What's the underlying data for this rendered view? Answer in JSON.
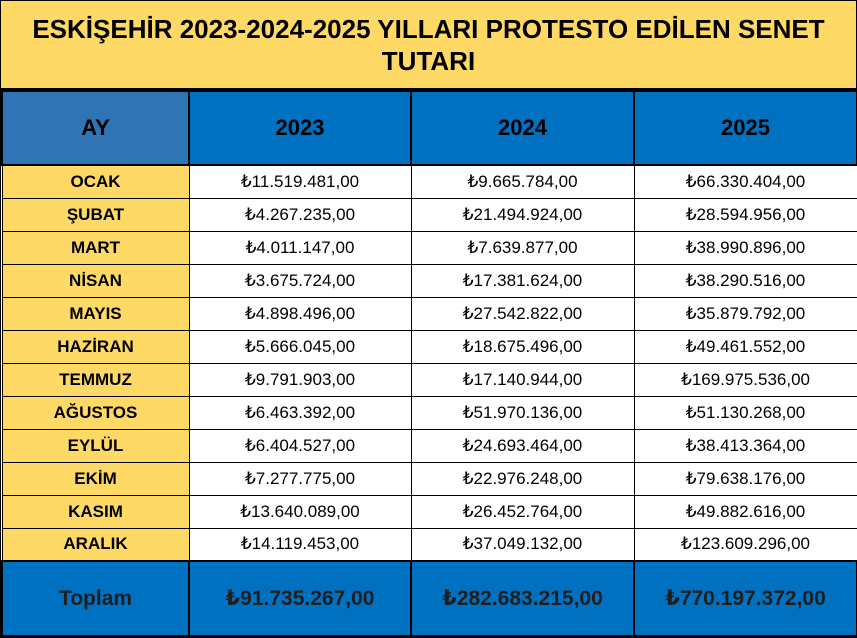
{
  "title": "ESKİŞEHİR 2023-2024-2025 YILLARI PROTESTO EDİLEN SENET TUTARI",
  "header": {
    "month_col": "AY",
    "years": [
      "2023",
      "2024",
      "2025"
    ]
  },
  "rows": [
    {
      "month": "OCAK",
      "values": [
        "₺11.519.481,00",
        "₺9.665.784,00",
        "₺66.330.404,00"
      ]
    },
    {
      "month": "ŞUBAT",
      "values": [
        "₺4.267.235,00",
        "₺21.494.924,00",
        "₺28.594.956,00"
      ]
    },
    {
      "month": "MART",
      "values": [
        "₺4.011.147,00",
        "₺7.639.877,00",
        "₺38.990.896,00"
      ]
    },
    {
      "month": "NİSAN",
      "values": [
        "₺3.675.724,00",
        "₺17.381.624,00",
        "₺38.290.516,00"
      ]
    },
    {
      "month": "MAYIS",
      "values": [
        "₺4.898.496,00",
        "₺27.542.822,00",
        "₺35.879.792,00"
      ]
    },
    {
      "month": "HAZİRAN",
      "values": [
        "₺5.666.045,00",
        "₺18.675.496,00",
        "₺49.461.552,00"
      ]
    },
    {
      "month": "TEMMUZ",
      "values": [
        "₺9.791.903,00",
        "₺17.140.944,00",
        "₺169.975.536,00"
      ]
    },
    {
      "month": "AĞUSTOS",
      "values": [
        "₺6.463.392,00",
        "₺51.970.136,00",
        "₺51.130.268,00"
      ]
    },
    {
      "month": "EYLÜL",
      "values": [
        "₺6.404.527,00",
        "₺24.693.464,00",
        "₺38.413.364,00"
      ]
    },
    {
      "month": "EKİM",
      "values": [
        "₺7.277.775,00",
        "₺22.976.248,00",
        "₺79.638.176,00"
      ]
    },
    {
      "month": "KASIM",
      "values": [
        "₺13.640.089,00",
        "₺26.452.764,00",
        "₺49.882.616,00"
      ]
    },
    {
      "month": "ARALIK",
      "values": [
        "₺14.119.453,00",
        "₺37.049.132,00",
        "₺123.609.296,00"
      ]
    }
  ],
  "total": {
    "label": "Toplam",
    "values": [
      "₺91.735.267,00",
      "₺282.683.215,00",
      "₺770.197.372,00"
    ]
  },
  "colors": {
    "yellow": "#ffd966",
    "blue": "#0070c0",
    "steel_blue": "#2f75b5"
  }
}
